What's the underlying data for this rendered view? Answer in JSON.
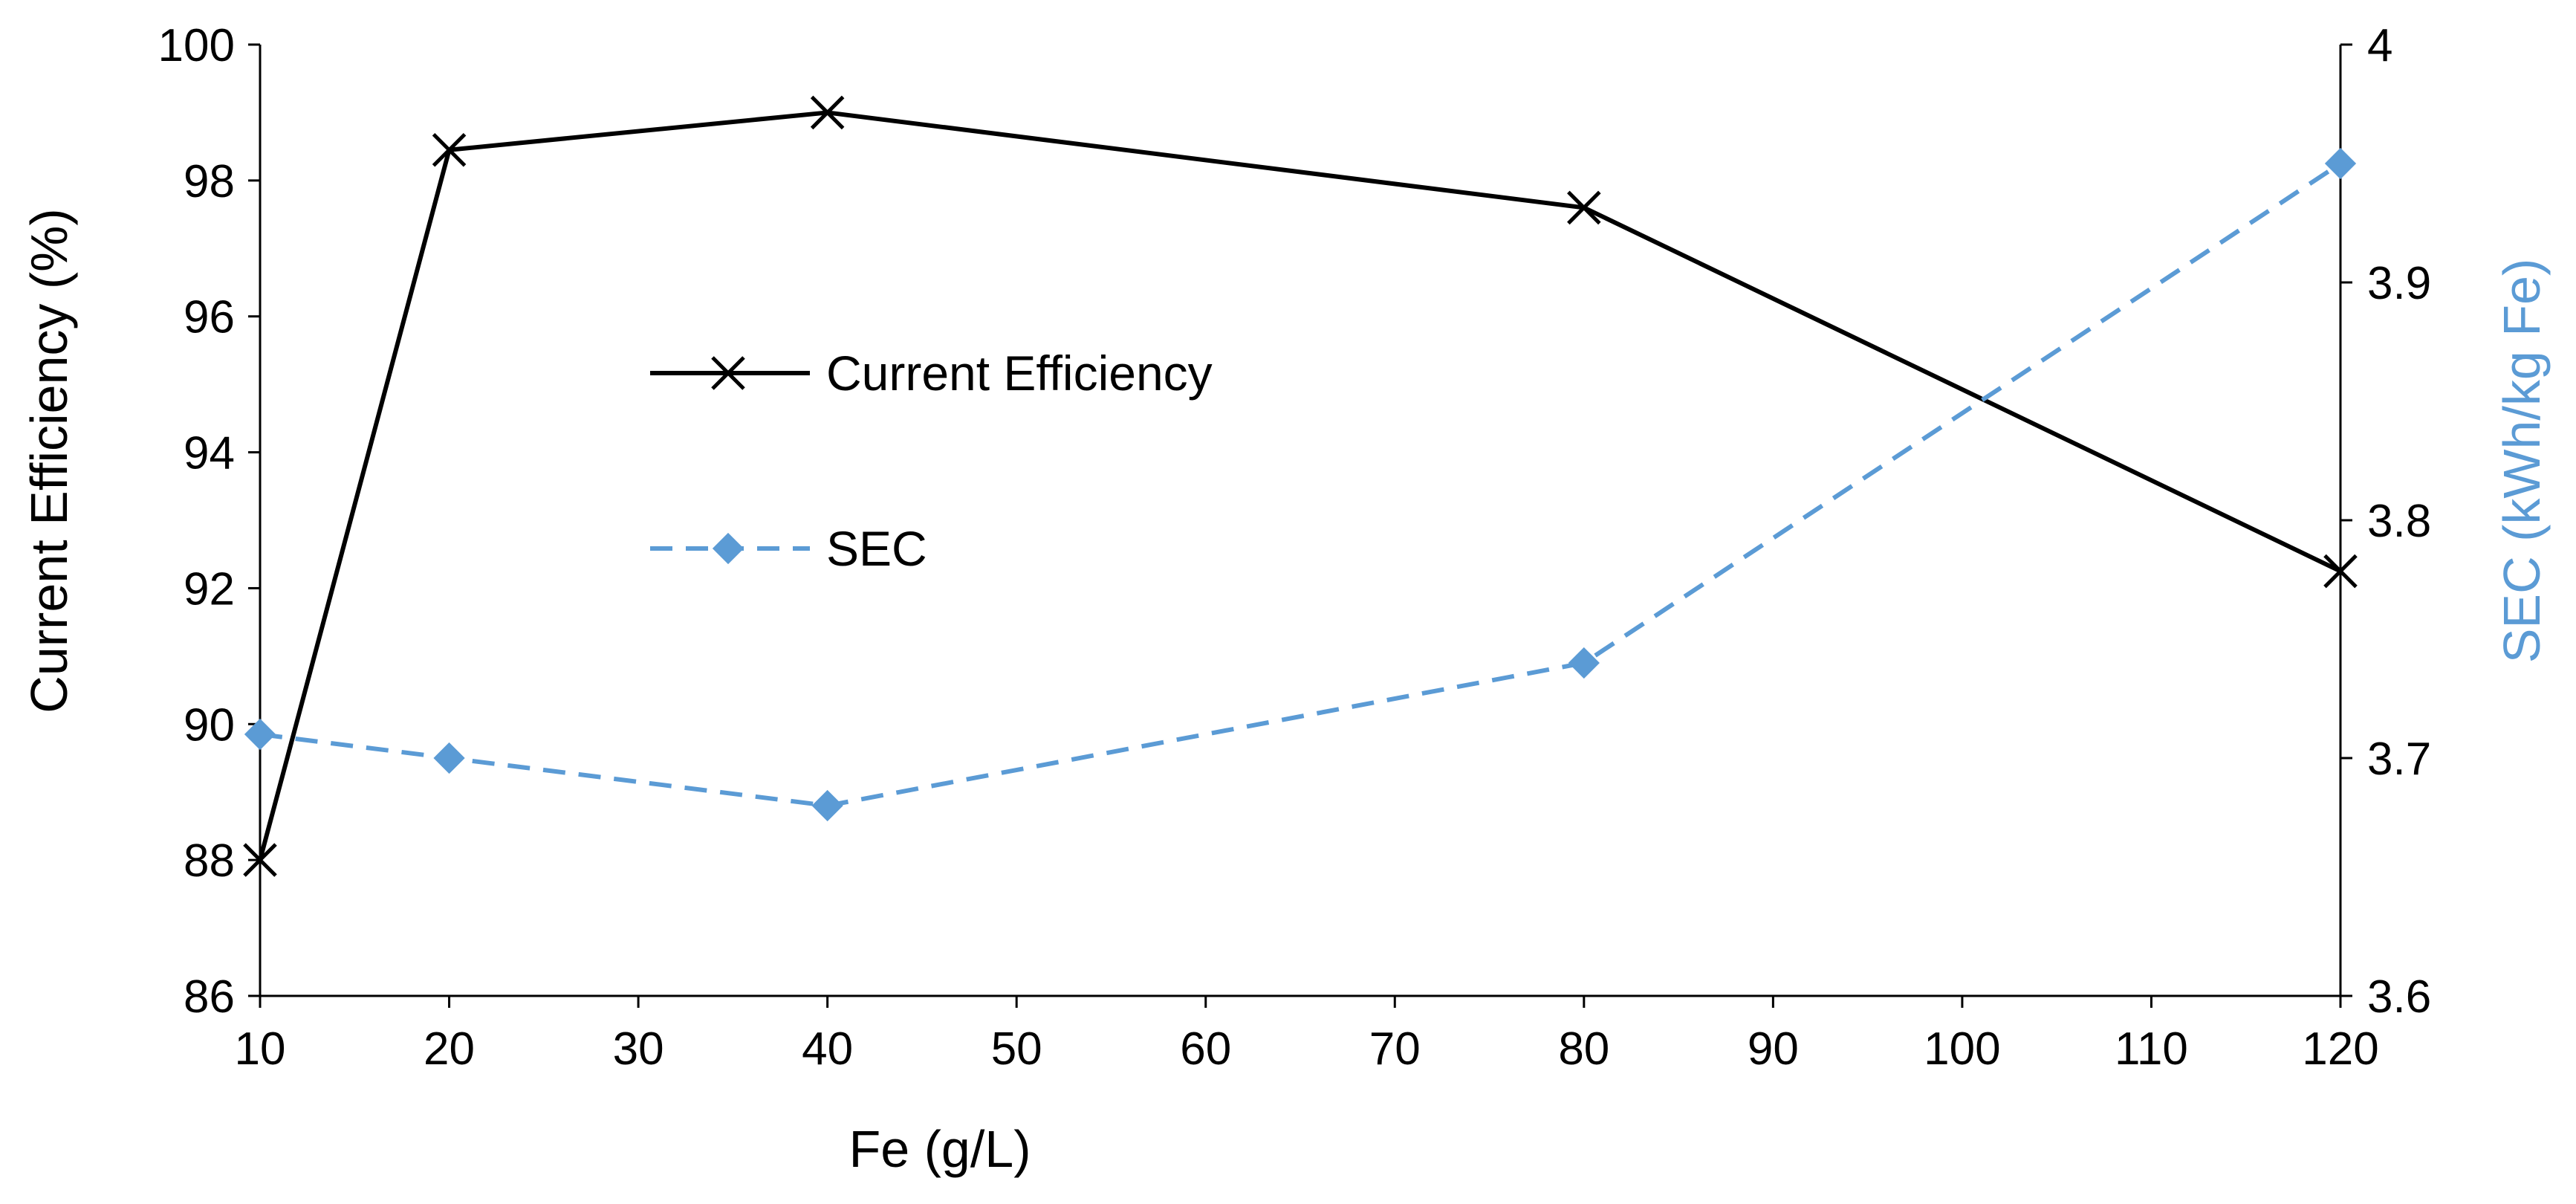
{
  "chart_data": {
    "type": "line",
    "title": "",
    "xlabel": "Fe (g/L)",
    "ylabel": "Current Efficiency (%)",
    "y2label": "SEC (kWh/kg Fe)",
    "xlim": [
      10,
      120
    ],
    "xticks": [
      10,
      20,
      30,
      40,
      50,
      60,
      70,
      80,
      90,
      100,
      110,
      120
    ],
    "ylim": [
      86,
      100
    ],
    "yticks": [
      86,
      88,
      90,
      92,
      94,
      96,
      98,
      100
    ],
    "y2lim": [
      3.6,
      4.0
    ],
    "y2ticks": [
      "3.6",
      "3.7",
      "3.8",
      "3.9",
      "4"
    ],
    "grid": false,
    "legend_position": "center-left",
    "series": [
      {
        "name": "Current Efficiency",
        "axis": "left",
        "color": "#000000",
        "line_style": "solid",
        "marker": "x",
        "x": [
          10,
          20,
          40,
          80,
          120
        ],
        "y": [
          88.0,
          98.45,
          99.0,
          97.6,
          92.25
        ]
      },
      {
        "name": "SEC",
        "axis": "right",
        "color": "#5b9bd5",
        "line_style": "dashed",
        "marker": "diamond",
        "x": [
          10,
          20,
          40,
          80,
          120
        ],
        "y": [
          3.71,
          3.7,
          3.68,
          3.74,
          3.95
        ]
      }
    ]
  }
}
